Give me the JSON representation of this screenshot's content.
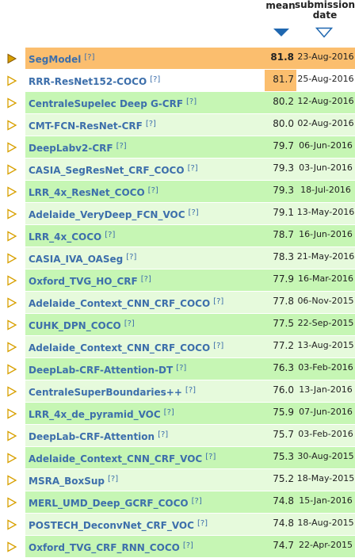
{
  "header": {
    "mean_label": "mean",
    "submission_label_1": "submission",
    "submission_label_2": "date",
    "sort_desc_icon": "triangle-down-filled-icon",
    "sort_asc_icon": "triangle-down-outline-icon"
  },
  "colors": {
    "highlight": "#fbbe6e",
    "row_green": "#c6f6b4",
    "row_green_light": "#e6fadc",
    "link": "#3d6fab",
    "marker": "#d8a000",
    "sort_icon": "#1f67b0"
  },
  "rows": [
    {
      "name": "SegModel",
      "help": "[?]",
      "mean": "81.8",
      "date": "23-Aug-2016"
    },
    {
      "name": "RRR-ResNet152-COCO",
      "help": "[?]",
      "mean": "81.7",
      "date": "25-Aug-2016"
    },
    {
      "name": "CentraleSupelec Deep G-CRF",
      "help": "[?]",
      "mean": "80.2",
      "date": "12-Aug-2016"
    },
    {
      "name": "CMT-FCN-ResNet-CRF",
      "help": "[?]",
      "mean": "80.0",
      "date": "02-Aug-2016"
    },
    {
      "name": "DeepLabv2-CRF",
      "help": "[?]",
      "mean": "79.7",
      "date": "06-Jun-2016"
    },
    {
      "name": "CASIA_SegResNet_CRF_COCO",
      "help": "[?]",
      "mean": "79.3",
      "date": "03-Jun-2016"
    },
    {
      "name": "LRR_4x_ResNet_COCO",
      "help": "[?]",
      "mean": "79.3",
      "date": "18-Jul-2016"
    },
    {
      "name": "Adelaide_VeryDeep_FCN_VOC",
      "help": "[?]",
      "mean": "79.1",
      "date": "13-May-2016"
    },
    {
      "name": "LRR_4x_COCO",
      "help": "[?]",
      "mean": "78.7",
      "date": "16-Jun-2016"
    },
    {
      "name": "CASIA_IVA_OASeg",
      "help": "[?]",
      "mean": "78.3",
      "date": "21-May-2016"
    },
    {
      "name": "Oxford_TVG_HO_CRF",
      "help": "[?]",
      "mean": "77.9",
      "date": "16-Mar-2016"
    },
    {
      "name": "Adelaide_Context_CNN_CRF_COCO",
      "help": "[?]",
      "mean": "77.8",
      "date": "06-Nov-2015"
    },
    {
      "name": "CUHK_DPN_COCO",
      "help": "[?]",
      "mean": "77.5",
      "date": "22-Sep-2015"
    },
    {
      "name": "Adelaide_Context_CNN_CRF_COCO",
      "help": "[?]",
      "mean": "77.2",
      "date": "13-Aug-2015"
    },
    {
      "name": "DeepLab-CRF-Attention-DT",
      "help": "[?]",
      "mean": "76.3",
      "date": "03-Feb-2016"
    },
    {
      "name": "CentraleSuperBoundaries++",
      "help": "[?]",
      "mean": "76.0",
      "date": "13-Jan-2016"
    },
    {
      "name": "LRR_4x_de_pyramid_VOC",
      "help": "[?]",
      "mean": "75.9",
      "date": "07-Jun-2016"
    },
    {
      "name": "DeepLab-CRF-Attention",
      "help": "[?]",
      "mean": "75.7",
      "date": "03-Feb-2016"
    },
    {
      "name": "Adelaide_Context_CNN_CRF_VOC",
      "help": "[?]",
      "mean": "75.3",
      "date": "30-Aug-2015"
    },
    {
      "name": "MSRA_BoxSup",
      "help": "[?]",
      "mean": "75.2",
      "date": "18-May-2015"
    },
    {
      "name": "MERL_UMD_Deep_GCRF_COCO",
      "help": "[?]",
      "mean": "74.8",
      "date": "15-Jan-2016"
    },
    {
      "name": "POSTECH_DeconvNet_CRF_VOC",
      "help": "[?]",
      "mean": "74.8",
      "date": "18-Aug-2015"
    },
    {
      "name": "Oxford_TVG_CRF_RNN_COCO",
      "help": "[?]",
      "mean": "74.7",
      "date": "22-Apr-2015"
    }
  ]
}
